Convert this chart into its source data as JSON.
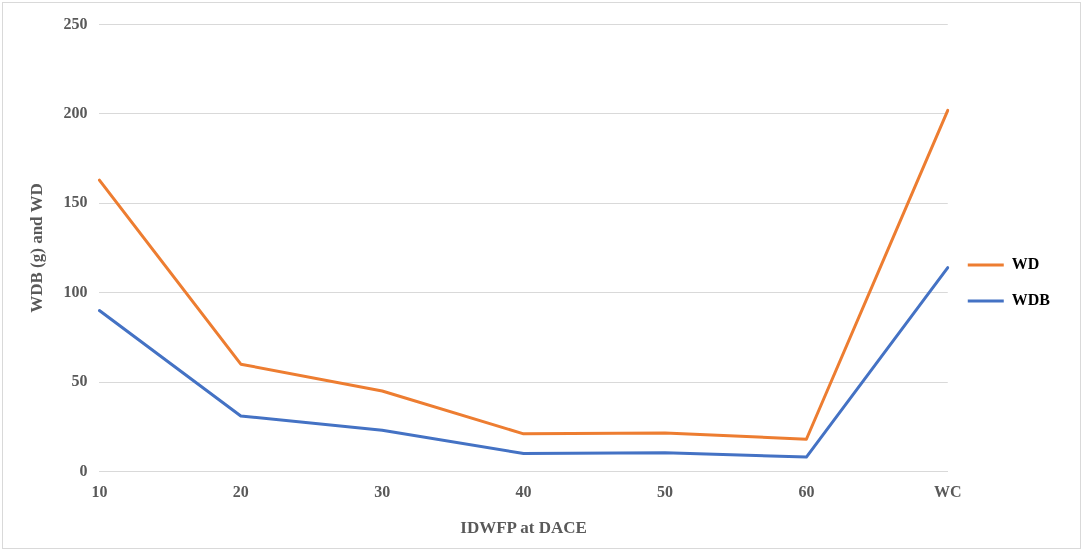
{
  "chart_data": {
    "type": "line",
    "xlabel": "IDWFP at DACE",
    "ylabel": "WDB (g) and WD",
    "categories": [
      "10",
      "20",
      "30",
      "40",
      "50",
      "60",
      "WC"
    ],
    "series": [
      {
        "name": "WD",
        "color": "#ed7d31",
        "values": [
          163,
          60,
          45,
          21,
          21.5,
          18,
          202
        ]
      },
      {
        "name": "WDB",
        "color": "#4472c4",
        "values": [
          90,
          31,
          23,
          10,
          10.5,
          8,
          114
        ]
      }
    ],
    "ylim": [
      0,
      250
    ],
    "yticks": [
      0,
      50,
      100,
      150,
      200,
      250
    ],
    "grid": "y",
    "legend": "right",
    "marker": "none",
    "line_style": "solid"
  }
}
